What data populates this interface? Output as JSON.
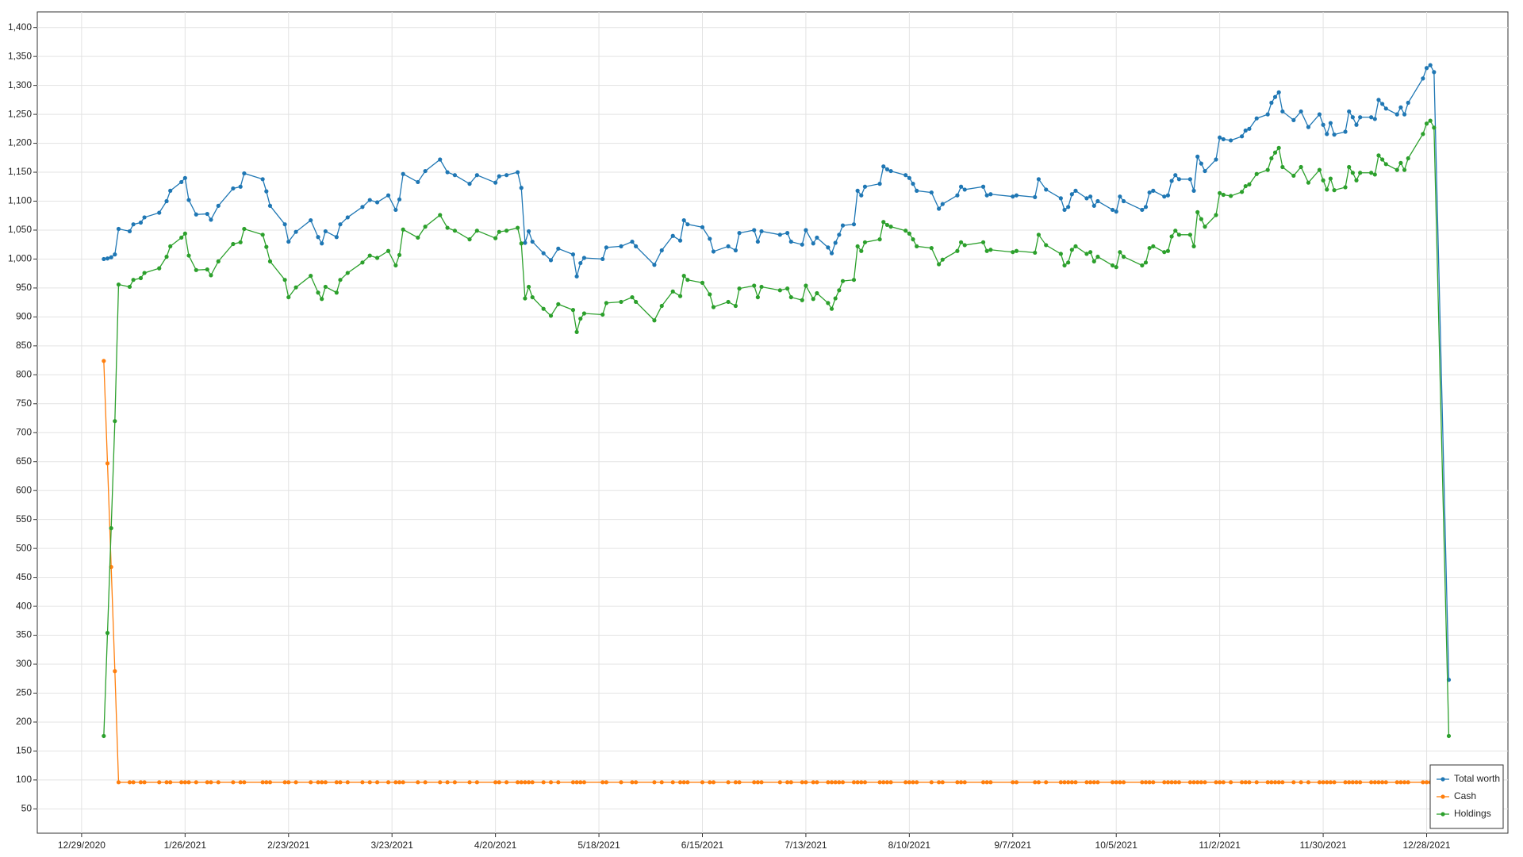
{
  "chart_data": {
    "type": "line",
    "x": [
      "1/4/2021",
      "1/5/2021",
      "1/6/2021",
      "1/7/2021",
      "1/8/2021",
      "1/11/2021",
      "1/12/2021",
      "1/14/2021",
      "1/15/2021",
      "1/19/2021",
      "1/21/2021",
      "1/22/2021",
      "1/25/2021",
      "1/26/2021",
      "1/27/2021",
      "1/29/2021",
      "2/1/2021",
      "2/2/2021",
      "2/4/2021",
      "2/8/2021",
      "2/10/2021",
      "2/11/2021",
      "2/16/2021",
      "2/17/2021",
      "2/18/2021",
      "2/22/2021",
      "2/23/2021",
      "2/25/2021",
      "3/1/2021",
      "3/3/2021",
      "3/4/2021",
      "3/5/2021",
      "3/8/2021",
      "3/9/2021",
      "3/11/2021",
      "3/15/2021",
      "3/17/2021",
      "3/19/2021",
      "3/22/2021",
      "3/24/2021",
      "3/25/2021",
      "3/26/2021",
      "3/30/2021",
      "4/1/2021",
      "4/5/2021",
      "4/7/2021",
      "4/9/2021",
      "4/13/2021",
      "4/15/2021",
      "4/20/2021",
      "4/21/2021",
      "4/23/2021",
      "4/26/2021",
      "4/27/2021",
      "4/28/2021",
      "4/29/2021",
      "4/30/2021",
      "5/3/2021",
      "5/5/2021",
      "5/7/2021",
      "5/11/2021",
      "5/12/2021",
      "5/13/2021",
      "5/14/2021",
      "5/19/2021",
      "5/20/2021",
      "5/24/2021",
      "5/27/2021",
      "5/28/2021",
      "6/2/2021",
      "6/4/2021",
      "6/7/2021",
      "6/9/2021",
      "6/10/2021",
      "6/11/2021",
      "6/15/2021",
      "6/17/2021",
      "6/18/2021",
      "6/22/2021",
      "6/24/2021",
      "6/25/2021",
      "6/29/2021",
      "6/30/2021",
      "7/1/2021",
      "7/6/2021",
      "7/8/2021",
      "7/9/2021",
      "7/12/2021",
      "7/13/2021",
      "7/15/2021",
      "7/16/2021",
      "7/19/2021",
      "7/20/2021",
      "7/21/2021",
      "7/22/2021",
      "7/23/2021",
      "7/26/2021",
      "7/27/2021",
      "7/28/2021",
      "7/29/2021",
      "8/2/2021",
      "8/3/2021",
      "8/4/2021",
      "8/5/2021",
      "8/9/2021",
      "8/10/2021",
      "8/11/2021",
      "8/12/2021",
      "8/16/2021",
      "8/18/2021",
      "8/19/2021",
      "8/23/2021",
      "8/24/2021",
      "8/25/2021",
      "8/30/2021",
      "8/31/2021",
      "9/1/2021",
      "9/7/2021",
      "9/8/2021",
      "9/13/2021",
      "9/14/2021",
      "9/16/2021",
      "9/20/2021",
      "9/21/2021",
      "9/22/2021",
      "9/23/2021",
      "9/24/2021",
      "9/27/2021",
      "9/28/2021",
      "9/29/2021",
      "9/30/2021",
      "10/4/2021",
      "10/5/2021",
      "10/6/2021",
      "10/7/2021",
      "10/12/2021",
      "10/13/2021",
      "10/14/2021",
      "10/15/2021",
      "10/18/2021",
      "10/19/2021",
      "10/20/2021",
      "10/21/2021",
      "10/22/2021",
      "10/25/2021",
      "10/26/2021",
      "10/27/2021",
      "10/28/2021",
      "10/29/2021",
      "11/1/2021",
      "11/2/2021",
      "11/3/2021",
      "11/5/2021",
      "11/8/2021",
      "11/9/2021",
      "11/10/2021",
      "11/12/2021",
      "11/15/2021",
      "11/16/2021",
      "11/17/2021",
      "11/18/2021",
      "11/19/2021",
      "11/22/2021",
      "11/24/2021",
      "11/26/2021",
      "11/29/2021",
      "11/30/2021",
      "12/1/2021",
      "12/2/2021",
      "12/3/2021",
      "12/6/2021",
      "12/7/2021",
      "12/8/2021",
      "12/9/2021",
      "12/10/2021",
      "12/13/2021",
      "12/14/2021",
      "12/15/2021",
      "12/16/2021",
      "12/17/2021",
      "12/20/2021",
      "12/21/2021",
      "12/22/2021",
      "12/23/2021",
      "12/27/2021",
      "12/28/2021",
      "12/29/2021",
      "12/30/2021",
      "1/3/2022"
    ],
    "series": [
      {
        "name": "Total worth",
        "color": "#1f77b4",
        "values": [
          1000,
          1001,
          1003,
          1008,
          1052,
          1048,
          1060,
          1063,
          1072,
          1080,
          1100,
          1118,
          1133,
          1140,
          1102,
          1077,
          1078,
          1068,
          1092,
          1122,
          1125,
          1148,
          1138,
          1117,
          1092,
          1060,
          1030,
          1047,
          1067,
          1038,
          1027,
          1048,
          1038,
          1060,
          1072,
          1090,
          1102,
          1098,
          1110,
          1085,
          1103,
          1147,
          1133,
          1152,
          1172,
          1150,
          1145,
          1130,
          1145,
          1132,
          1143,
          1145,
          1150,
          1123,
          1028,
          1048,
          1030,
          1010,
          998,
          1018,
          1008,
          970,
          993,
          1002,
          1000,
          1020,
          1022,
          1030,
          1022,
          990,
          1015,
          1040,
          1032,
          1067,
          1060,
          1055,
          1035,
          1013,
          1022,
          1015,
          1045,
          1050,
          1030,
          1048,
          1042,
          1045,
          1030,
          1025,
          1050,
          1027,
          1037,
          1020,
          1010,
          1028,
          1042,
          1058,
          1060,
          1118,
          1110,
          1125,
          1130,
          1160,
          1155,
          1152,
          1145,
          1140,
          1130,
          1118,
          1115,
          1087,
          1095,
          1110,
          1125,
          1120,
          1125,
          1110,
          1112,
          1108,
          1110,
          1107,
          1138,
          1120,
          1105,
          1085,
          1090,
          1112,
          1118,
          1105,
          1108,
          1092,
          1100,
          1085,
          1082,
          1108,
          1100,
          1085,
          1090,
          1115,
          1118,
          1108,
          1110,
          1135,
          1145,
          1138,
          1138,
          1118,
          1177,
          1165,
          1152,
          1172,
          1210,
          1207,
          1205,
          1212,
          1222,
          1225,
          1243,
          1250,
          1270,
          1280,
          1288,
          1255,
          1240,
          1255,
          1228,
          1250,
          1232,
          1216,
          1235,
          1215,
          1220,
          1255,
          1245,
          1232,
          1245,
          1245,
          1242,
          1275,
          1268,
          1260,
          1250,
          1262,
          1250,
          1270,
          1312,
          1330,
          1335,
          1323,
          273
        ]
      },
      {
        "name": "Cash",
        "color": "#ff7f0e",
        "values": [
          824,
          647,
          468,
          288,
          96,
          96,
          96,
          96,
          96,
          96,
          96,
          96,
          96,
          96,
          96,
          96,
          96,
          96,
          96,
          96,
          96,
          96,
          96,
          96,
          96,
          96,
          96,
          96,
          96,
          96,
          96,
          96,
          96,
          96,
          96,
          96,
          96,
          96,
          96,
          96,
          96,
          96,
          96,
          96,
          96,
          96,
          96,
          96,
          96,
          96,
          96,
          96,
          96,
          96,
          96,
          96,
          96,
          96,
          96,
          96,
          96,
          96,
          96,
          96,
          96,
          96,
          96,
          96,
          96,
          96,
          96,
          96,
          96,
          96,
          96,
          96,
          96,
          96,
          96,
          96,
          96,
          96,
          96,
          96,
          96,
          96,
          96,
          96,
          96,
          96,
          96,
          96,
          96,
          96,
          96,
          96,
          96,
          96,
          96,
          96,
          96,
          96,
          96,
          96,
          96,
          96,
          96,
          96,
          96,
          96,
          96,
          96,
          96,
          96,
          96,
          96,
          96,
          96,
          96,
          96,
          96,
          96,
          96,
          96,
          96,
          96,
          96,
          96,
          96,
          96,
          96,
          96,
          96,
          96,
          96,
          96,
          96,
          96,
          96,
          96,
          96,
          96,
          96,
          96,
          96,
          96,
          96,
          96,
          96,
          96,
          96,
          96,
          96,
          96,
          96,
          96,
          96,
          96,
          96,
          96,
          96,
          96,
          96,
          96,
          96,
          96,
          96,
          96,
          96,
          96,
          96,
          96,
          96,
          96,
          96,
          96,
          96,
          96,
          96,
          96,
          96,
          96,
          96,
          96,
          96,
          96,
          96,
          96,
          97
        ]
      },
      {
        "name": "Holdings",
        "color": "#2ca02c",
        "values": [
          176,
          354,
          535,
          720,
          956,
          952,
          964,
          967,
          976,
          984,
          1004,
          1022,
          1037,
          1044,
          1006,
          981,
          982,
          972,
          996,
          1026,
          1029,
          1052,
          1042,
          1021,
          996,
          964,
          934,
          951,
          971,
          942,
          931,
          952,
          942,
          964,
          976,
          994,
          1006,
          1002,
          1014,
          989,
          1007,
          1051,
          1037,
          1056,
          1076,
          1054,
          1049,
          1034,
          1049,
          1036,
          1047,
          1049,
          1054,
          1027,
          932,
          952,
          934,
          914,
          902,
          922,
          912,
          874,
          897,
          906,
          904,
          924,
          926,
          934,
          926,
          894,
          919,
          944,
          936,
          971,
          964,
          959,
          939,
          917,
          926,
          919,
          949,
          954,
          934,
          952,
          946,
          949,
          934,
          929,
          954,
          931,
          941,
          924,
          914,
          932,
          946,
          962,
          964,
          1022,
          1014,
          1029,
          1034,
          1064,
          1059,
          1056,
          1049,
          1044,
          1034,
          1022,
          1019,
          991,
          999,
          1014,
          1029,
          1024,
          1029,
          1014,
          1016,
          1012,
          1014,
          1011,
          1042,
          1024,
          1009,
          989,
          994,
          1016,
          1022,
          1009,
          1012,
          996,
          1004,
          989,
          986,
          1012,
          1004,
          989,
          994,
          1019,
          1022,
          1012,
          1014,
          1039,
          1049,
          1042,
          1042,
          1022,
          1081,
          1069,
          1056,
          1076,
          1114,
          1111,
          1109,
          1116,
          1126,
          1129,
          1147,
          1154,
          1174,
          1184,
          1192,
          1159,
          1144,
          1159,
          1132,
          1154,
          1136,
          1120,
          1139,
          1119,
          1124,
          1159,
          1149,
          1136,
          1149,
          1149,
          1146,
          1179,
          1172,
          1164,
          1154,
          1166,
          1154,
          1174,
          1216,
          1234,
          1239,
          1227,
          176
        ]
      }
    ],
    "xlim": [
      "12/17/2020",
      "1/19/2022"
    ],
    "xticks": [
      "12/29/2020",
      "1/26/2021",
      "2/23/2021",
      "3/23/2021",
      "4/20/2021",
      "5/18/2021",
      "6/15/2021",
      "7/13/2021",
      "8/10/2021",
      "9/7/2021",
      "10/5/2021",
      "11/2/2021",
      "11/30/2021",
      "12/28/2021"
    ],
    "ylim": [
      8,
      1427
    ],
    "yticks": [
      50,
      100,
      150,
      200,
      250,
      300,
      350,
      400,
      450,
      500,
      550,
      600,
      650,
      700,
      750,
      800,
      850,
      900,
      950,
      {
        "value": 1000,
        "label": "1,000"
      },
      {
        "value": 1050,
        "label": "1,050"
      },
      {
        "value": 1100,
        "label": "1,100"
      },
      {
        "value": 1150,
        "label": "1,150"
      },
      {
        "value": 1200,
        "label": "1,200"
      },
      {
        "value": 1250,
        "label": "1,250"
      },
      {
        "value": 1300,
        "label": "1,300"
      },
      {
        "value": 1350,
        "label": "1,350"
      },
      {
        "value": 1400,
        "label": "1,400"
      }
    ],
    "grid": true,
    "legend": "lower right"
  }
}
